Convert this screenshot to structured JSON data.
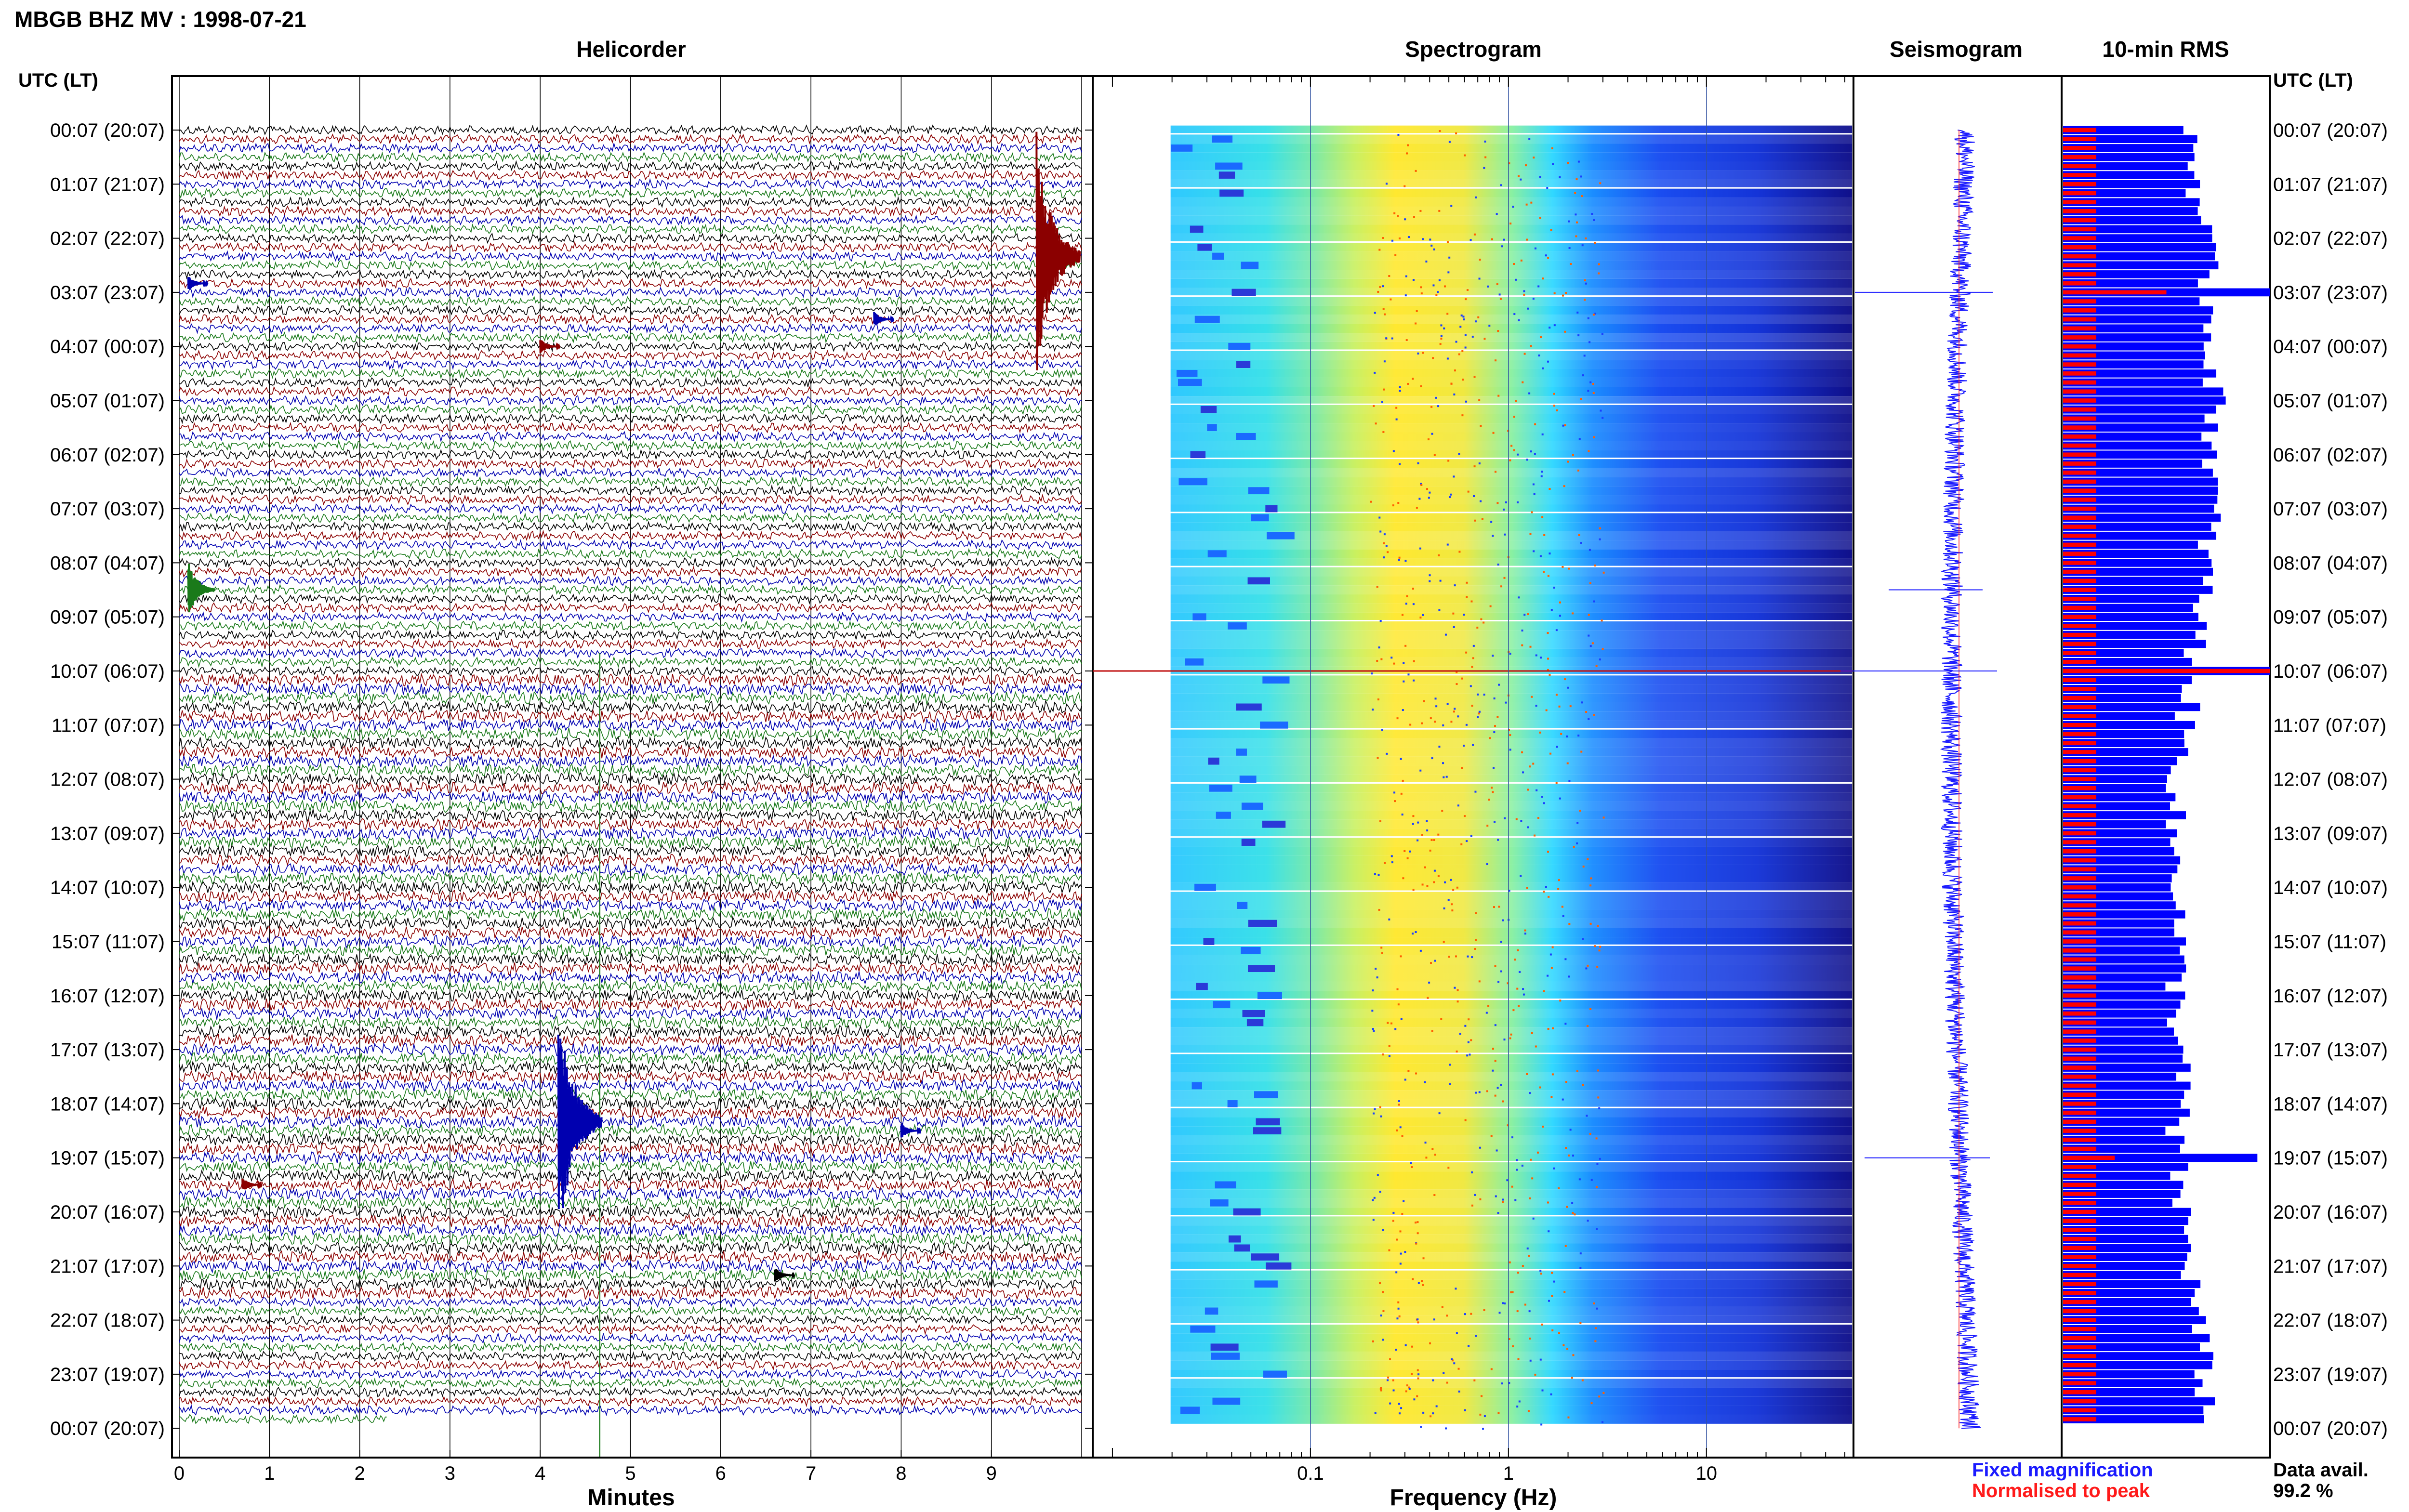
{
  "header": {
    "title": "MBGB BHZ MV : 1998-07-21",
    "utc_label_left": "UTC (LT)",
    "utc_label_right": "UTC (LT)"
  },
  "panels": {
    "helicorder": "Helicorder",
    "spectrogram": "Spectrogram",
    "seismogram": "Seismogram",
    "rms": "10-min RMS"
  },
  "axes": {
    "minutes_label": "Minutes",
    "frequency_label": "Frequency (Hz)",
    "minute_ticks": [
      "0",
      "1",
      "2",
      "3",
      "4",
      "5",
      "6",
      "7",
      "8",
      "9"
    ],
    "frequency_ticks": [
      "0.1",
      "1",
      "10"
    ]
  },
  "time_labels": [
    "00:07 (20:07)",
    "01:07 (21:07)",
    "02:07 (22:07)",
    "03:07 (23:07)",
    "04:07 (00:07)",
    "05:07 (01:07)",
    "06:07 (02:07)",
    "07:07 (03:07)",
    "08:07 (04:07)",
    "09:07 (05:07)",
    "10:07 (06:07)",
    "11:07 (07:07)",
    "12:07 (08:07)",
    "13:07 (09:07)",
    "14:07 (10:07)",
    "15:07 (11:07)",
    "16:07 (12:07)",
    "17:07 (13:07)",
    "18:07 (14:07)",
    "19:07 (15:07)",
    "20:07 (16:07)",
    "21:07 (17:07)",
    "22:07 (18:07)",
    "23:07 (19:07)",
    "00:07 (20:07)"
  ],
  "legend": {
    "fixed": "Fixed magnification",
    "normalised": "Normalised to peak",
    "fixed_color": "#1a1aff",
    "normalised_color": "#ff1a1a"
  },
  "availability": {
    "label": "Data avail.",
    "value": "99.2 %"
  },
  "colors": {
    "trace_cycle": [
      "#000000",
      "#8b0000",
      "#0000b0",
      "#1a7a1a"
    ],
    "rms_fixed": "#0000ff",
    "rms_normalised": "#ff0000",
    "spectrogram_scale": [
      "#00007a",
      "#0000ff",
      "#00a0ff",
      "#00ffff",
      "#7fff7f",
      "#ffff00",
      "#ff8000",
      "#ff0000"
    ]
  },
  "chart_data": {
    "type": "heatmap",
    "helicorder": {
      "rows_per_hour": 6,
      "hours": 24,
      "minutes_range": [
        0,
        10
      ],
      "events": [
        {
          "row": 14,
          "minute": 9.5,
          "color": "#8b0000",
          "amplitude": "large"
        },
        {
          "row": 17,
          "minute": 0.1,
          "color": "#0000b0",
          "amplitude": "small"
        },
        {
          "row": 21,
          "minute": 7.7,
          "color": "#0000b0",
          "amplitude": "small"
        },
        {
          "row": 24,
          "minute": 4.0,
          "color": "#8b0000",
          "amplitude": "small"
        },
        {
          "row": 51,
          "minute": 0.1,
          "color": "#1a7a1a",
          "amplitude": "medium"
        },
        {
          "row": 110,
          "minute": 4.2,
          "color": "#0000b0",
          "amplitude": "large"
        },
        {
          "row": 111,
          "minute": 8.0,
          "color": "#0000b0",
          "amplitude": "small"
        },
        {
          "row": 117,
          "minute": 0.7,
          "color": "#8b0000",
          "amplitude": "small"
        },
        {
          "row": 127,
          "minute": 6.6,
          "color": "#000000",
          "amplitude": "small"
        }
      ]
    },
    "spectrogram": {
      "frequency_range_hz": [
        0.02,
        40
      ],
      "x_scale": "log",
      "energy_band_hz": [
        0.2,
        1.0
      ]
    },
    "rms_10min": {
      "spike_rows": [
        {
          "row": 18,
          "fixed": 1.0,
          "normalised": 0.5
        },
        {
          "row": 60,
          "fixed": 1.0,
          "normalised": 1.0
        },
        {
          "row": 114,
          "fixed": 0.94,
          "normalised": 0.25
        }
      ]
    },
    "data_availability_percent": 99.2
  }
}
